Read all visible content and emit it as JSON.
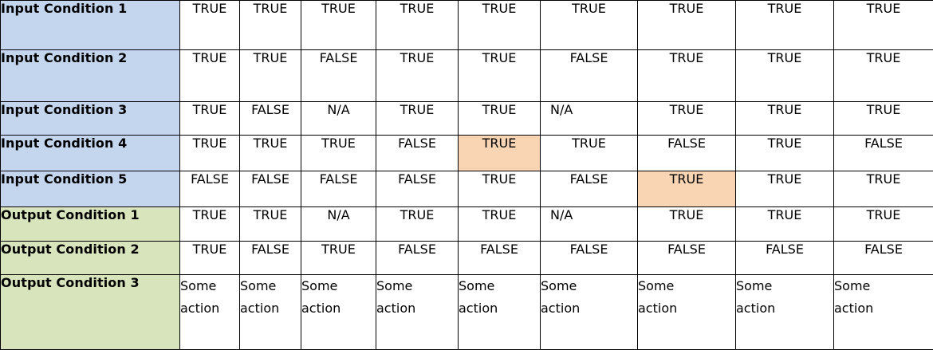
{
  "rows": [
    {
      "label": "Input Condition 1",
      "values": [
        "TRUE",
        "TRUE",
        "TRUE",
        "TRUE",
        "TRUE",
        "TRUE",
        "TRUE",
        "TRUE",
        "TRUE"
      ]
    },
    {
      "label": "Input Condition 2",
      "values": [
        "TRUE",
        "TRUE",
        "FALSE",
        "TRUE",
        "TRUE",
        "FALSE",
        "TRUE",
        "TRUE",
        "TRUE"
      ]
    },
    {
      "label": "Input Condition 3",
      "values": [
        "TRUE",
        "FALSE",
        "N/A",
        "TRUE",
        "TRUE",
        "N/A",
        "TRUE",
        "TRUE",
        "TRUE"
      ]
    },
    {
      "label": "Input Condition 4",
      "values": [
        "TRUE",
        "TRUE",
        "TRUE",
        "FALSE",
        "TRUE",
        "TRUE",
        "FALSE",
        "TRUE",
        "FALSE"
      ]
    },
    {
      "label": "Input Condition 5",
      "values": [
        "FALSE",
        "FALSE",
        "FALSE",
        "FALSE",
        "TRUE",
        "FALSE",
        "TRUE",
        "TRUE",
        "TRUE"
      ]
    },
    {
      "label": "Output Condition 1",
      "values": [
        "TRUE",
        "TRUE",
        "N/A",
        "TRUE",
        "TRUE",
        "N/A",
        "TRUE",
        "TRUE",
        "TRUE"
      ]
    },
    {
      "label": "Output Condition 2",
      "values": [
        "TRUE",
        "FALSE",
        "TRUE",
        "FALSE",
        "FALSE",
        "FALSE",
        "FALSE",
        "FALSE",
        "FALSE"
      ]
    },
    {
      "label": "Output Condition 3",
      "values": [
        [
          "Some",
          "action"
        ],
        [
          "Some",
          "action"
        ],
        [
          "Some",
          "action"
        ],
        [
          "Some",
          "action"
        ],
        [
          "Some",
          "action"
        ],
        [
          "Some",
          "action"
        ],
        [
          "Some",
          "action"
        ],
        [
          "Some",
          "action"
        ],
        [
          "Some",
          "action"
        ]
      ]
    }
  ],
  "colors": {
    "input_header": "#c4d6ee",
    "output_header": "#d8e4bc",
    "highlight": "#f9d5b4",
    "border": "#000000"
  }
}
